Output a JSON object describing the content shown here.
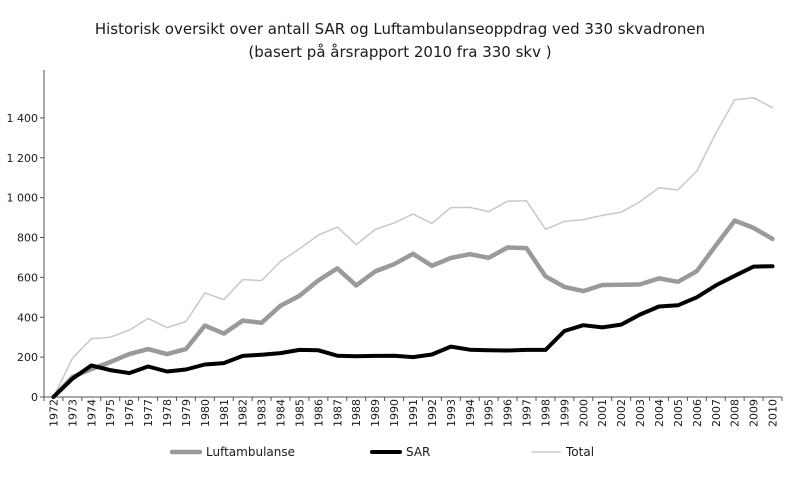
{
  "chart_data": {
    "type": "line",
    "title": "Historisk oversikt over antall SAR og Luftambulanseoppdrag ved 330 skvadronen",
    "subtitle": "(basert på årsrapport 2010 fra 330 skv )",
    "xlabel": "",
    "ylabel": "",
    "ylim": [
      0,
      1600
    ],
    "yticks": [
      0,
      200,
      400,
      600,
      800,
      1000,
      1200,
      1400
    ],
    "ytick_labels": [
      "0",
      "200",
      "400",
      "600",
      "800",
      "1 000",
      "1 200",
      "1 400"
    ],
    "grid": false,
    "legend_position": "bottom",
    "categories": [
      "1972",
      "1973",
      "1974",
      "1975",
      "1976",
      "1977",
      "1978",
      "1979",
      "1980",
      "1981",
      "1982",
      "1983",
      "1984",
      "1985",
      "1986",
      "1987",
      "1988",
      "1989",
      "1990",
      "1991",
      "1992",
      "1993",
      "1994",
      "1995",
      "1996",
      "1997",
      "1998",
      "1999",
      "2000",
      "2001",
      "2002",
      "2003",
      "2004",
      "2005",
      "2006",
      "2007",
      "2008",
      "2009",
      "2010"
    ],
    "series": [
      {
        "name": "Luftambulanse",
        "color": "#9a9a9a",
        "values": [
          0,
          100,
          140,
          175,
          215,
          240,
          215,
          240,
          358,
          318,
          383,
          372,
          458,
          508,
          585,
          645,
          560,
          630,
          666,
          718,
          658,
          697,
          716,
          698,
          750,
          747,
          605,
          552,
          531,
          562,
          563,
          565,
          595,
          578,
          631,
          760,
          885,
          848,
          793
        ]
      },
      {
        "name": "SAR",
        "color": "#000000",
        "values": [
          0,
          92,
          158,
          135,
          120,
          153,
          128,
          138,
          163,
          170,
          206,
          212,
          220,
          236,
          234,
          207,
          204,
          206,
          207,
          200,
          213,
          253,
          237,
          234,
          233,
          236,
          236,
          331,
          360,
          349,
          363,
          414,
          454,
          460,
          500,
          560,
          608,
          654,
          656
        ]
      },
      {
        "name": "Total",
        "color": "#c8c8c8",
        "values": [
          0,
          194,
          292,
          300,
          335,
          394,
          348,
          378,
          522,
          488,
          589,
          584,
          680,
          744,
          812,
          853,
          764,
          840,
          873,
          918,
          871,
          950,
          951,
          930,
          982,
          984,
          841,
          881,
          890,
          911,
          927,
          980,
          1050,
          1038,
          1133,
          1322,
          1491,
          1501,
          1451
        ]
      }
    ]
  }
}
